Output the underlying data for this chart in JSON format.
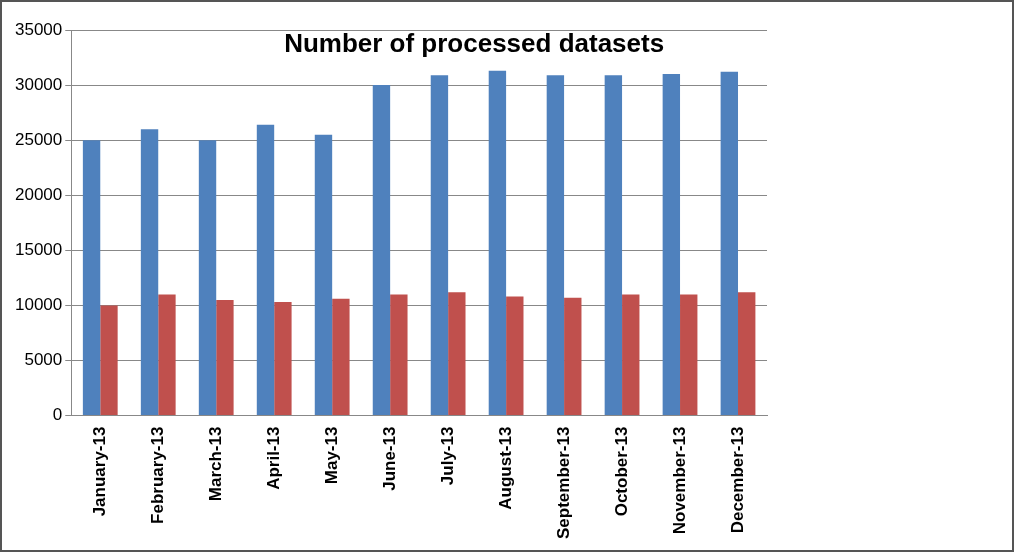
{
  "chart_data": {
    "type": "bar",
    "title": "Number of processed datasets",
    "categories": [
      "January-13",
      "February-13",
      "March-13",
      "April-13",
      "May-13",
      "June-13",
      "July-13",
      "August-13",
      "September-13",
      "October-13",
      "November-13",
      "December-13"
    ],
    "series": [
      {
        "color": "#4f81bd",
        "values": [
          25000,
          26000,
          25000,
          26400,
          25500,
          30000,
          30900,
          31300,
          30900,
          30900,
          31000,
          31200
        ]
      },
      {
        "color": "#c0504d",
        "values": [
          10000,
          11000,
          10500,
          10300,
          10600,
          11000,
          11200,
          10800,
          10700,
          11000,
          11000,
          11200
        ]
      }
    ],
    "ylim": [
      0,
      35000
    ],
    "yticks": [
      0,
      5000,
      10000,
      15000,
      20000,
      25000,
      30000,
      35000
    ],
    "grid": "y",
    "legend": false
  }
}
